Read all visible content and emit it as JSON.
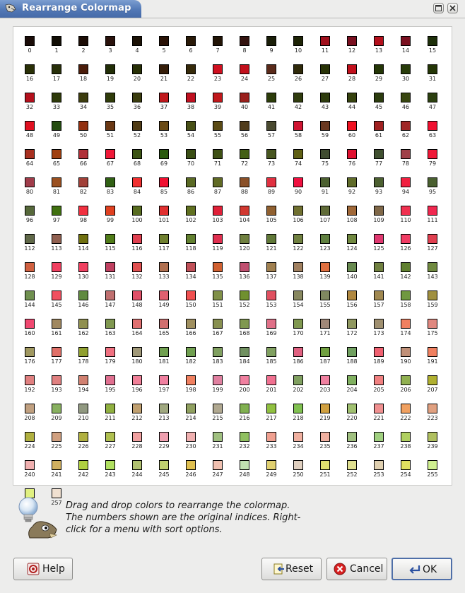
{
  "window": {
    "title": "Rearrange Colormap"
  },
  "colormap": {
    "colors": [
      "#1a0c08",
      "#120e06",
      "#1c0d06",
      "#2a120c",
      "#1c1206",
      "#2a1206",
      "#2a1a08",
      "#221406",
      "#341410",
      "#1a1e08",
      "#1e2406",
      "#a0101c",
      "#7a1020",
      "#b4101c",
      "#7a1020",
      "#1e300a",
      "#2a3006",
      "#28300a",
      "#4a1c0a",
      "#222e06",
      "#283006",
      "#361e0a",
      "#362a0a",
      "#d01020",
      "#c2101c",
      "#5a2a1a",
      "#302a0a",
      "#283206",
      "#c2101c",
      "#243606",
      "#283c0a",
      "#243606",
      "#b4101c",
      "#2e3a0a",
      "#3c3c0e",
      "#303c0a",
      "#3a3c0e",
      "#c0181c",
      "#c01020",
      "#c0181c",
      "#9a201c",
      "#2c3c0a",
      "#303c0e",
      "#2e3c0e",
      "#36420e",
      "#2c3c0e",
      "#384610",
      "#2c4010",
      "#e01020",
      "#244c10",
      "#923010",
      "#6a3814",
      "#503c16",
      "#6a4a14",
      "#485016",
      "#5a4a14",
      "#503c1c",
      "#4a4a30",
      "#d01432",
      "#6a3820",
      "#f01020",
      "#a02020",
      "#a02828",
      "#f01030",
      "#a83020",
      "#a04010",
      "#b03038",
      "#f01838",
      "#3c5414",
      "#2a5a0e",
      "#3a4e14",
      "#3e5014",
      "#446014",
      "#485620",
      "#606014",
      "#404c30",
      "#e01030",
      "#405030",
      "#a04048",
      "#f01838",
      "#a03c4a",
      "#9a5020",
      "#a04038",
      "#306014",
      "#f03030",
      "#f01030",
      "#5a6a24",
      "#606a24",
      "#8a5028",
      "#e03040",
      "#f01040",
      "#4c6030",
      "#606c2a",
      "#4c6030",
      "#f02040",
      "#4a6030",
      "#56683a",
      "#407010",
      "#f03040",
      "#e04020",
      "#586c20",
      "#e03030",
      "#607020",
      "#e02038",
      "#d03830",
      "#906030",
      "#707030",
      "#606b38",
      "#a06838",
      "#806848",
      "#f03050",
      "#f02850",
      "#606848",
      "#906050",
      "#707010",
      "#507c18",
      "#e04050",
      "#708030",
      "#628030",
      "#e03050",
      "#708040",
      "#607838",
      "#708040",
      "#608040",
      "#708840",
      "#e03870",
      "#f03c64",
      "#e04050",
      "#d06040",
      "#f04060",
      "#f04060",
      "#c04060",
      "#e05050",
      "#b07050",
      "#c05058",
      "#d06030",
      "#c05070",
      "#a08050",
      "#a08060",
      "#e07040",
      "#688a50",
      "#708040",
      "#608030",
      "#708a40",
      "#709050",
      "#f05060",
      "#608a40",
      "#c07070",
      "#e05068",
      "#e06070",
      "#f05050",
      "#809048",
      "#709030",
      "#e05060",
      "#888860",
      "#808860",
      "#b08840",
      "#a08850",
      "#709840",
      "#a09040",
      "#f04870",
      "#a08860",
      "#909050",
      "#809850",
      "#e07070",
      "#d07070",
      "#a09060",
      "#889050",
      "#809850",
      "#e07088",
      "#809850",
      "#a08878",
      "#909860",
      "#a09070",
      "#f08060",
      "#e08880",
      "#a09860",
      "#e07068",
      "#90a030",
      "#f07080",
      "#a09878",
      "#70a050",
      "#70a050",
      "#80a060",
      "#709060",
      "#80a060",
      "#e06080",
      "#70a040",
      "#70a060",
      "#f06070",
      "#c09078",
      "#f08060",
      "#e08080",
      "#e08080",
      "#d08070",
      "#e07090",
      "#f08098",
      "#f080a0",
      "#f08060",
      "#e080a0",
      "#f080a0",
      "#f07090",
      "#80a060",
      "#f080a0",
      "#80b060",
      "#f08080",
      "#90b050",
      "#b0b030",
      "#c0a080",
      "#88b060",
      "#909880",
      "#90b040",
      "#c0a070",
      "#a0a880",
      "#90a060",
      "#b0a890",
      "#80b050",
      "#90c040",
      "#80c050",
      "#d0a040",
      "#a0c070",
      "#f09090",
      "#f0a060",
      "#e0a080",
      "#b0b040",
      "#d0a080",
      "#b0b040",
      "#b0c050",
      "#f0a0a0",
      "#f0a0b0",
      "#f0b0b0",
      "#a0c080",
      "#90c060",
      "#f0a090",
      "#f0b0a0",
      "#f0b0a0",
      "#a0c080",
      "#a0d080",
      "#b0d060",
      "#b0c060",
      "#f0b0b0",
      "#d0b060",
      "#b0d040",
      "#b0e060",
      "#b0c070",
      "#c0d070",
      "#e0c050",
      "#f0c0b0",
      "#c0e0b0",
      "#e0d070",
      "#e0d0c0",
      "#e0e070",
      "#e0e090",
      "#e0d0b0",
      "#e0e060",
      "#d0f090",
      "#e0f080",
      "#f0e0d0"
    ]
  },
  "help": {
    "lines": [
      "Drag and drop colors to rearrange the colormap.",
      "The numbers shown are the original indices.  Right-",
      "click for a menu with sort options."
    ]
  },
  "buttons": {
    "help": "Help",
    "reset": "Reset",
    "cancel": "Cancel",
    "ok": "OK"
  }
}
